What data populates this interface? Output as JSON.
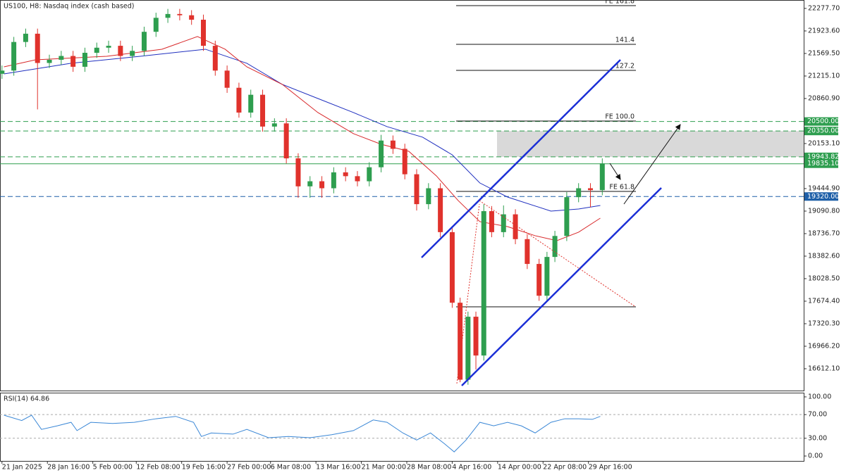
{
  "chart_data": [
    {
      "type": "candlestick",
      "title": "US100, H8:  Nasdaq index (cash based)",
      "x": [
        0,
        6,
        12,
        18,
        24,
        30,
        36,
        42,
        48,
        54,
        60,
        66,
        72,
        78,
        84,
        90,
        96,
        102,
        108,
        114,
        120,
        126,
        132,
        138,
        144,
        150,
        156,
        162,
        168,
        174,
        180,
        186,
        192,
        198,
        204,
        210,
        216,
        222,
        228,
        232,
        236,
        240,
        244,
        248,
        254,
        260,
        266,
        272,
        276,
        280,
        286,
        292,
        298,
        304
      ],
      "open": [
        21250,
        21300,
        21750,
        21880,
        21420,
        21470,
        21530,
        21360,
        21580,
        21660,
        21690,
        21530,
        21610,
        21910,
        22130,
        22190,
        22170,
        22100,
        21690,
        21300,
        21030,
        20640,
        20920,
        20420,
        20470,
        19920,
        19480,
        19560,
        19450,
        19700,
        19640,
        19560,
        19780,
        20200,
        20070,
        19670,
        19200,
        19450,
        18760,
        17650,
        16440,
        17430,
        16820,
        19090,
        18760,
        19040,
        18650,
        18260,
        17760,
        18370,
        18700,
        19310,
        19450,
        19420
      ],
      "high": [
        21380,
        21830,
        21960,
        21960,
        21550,
        21610,
        21610,
        21660,
        21740,
        21770,
        21770,
        21690,
        21990,
        22210,
        22270,
        22270,
        22250,
        22180,
        21770,
        21380,
        21110,
        21000,
        21000,
        20550,
        20550,
        20000,
        19640,
        19640,
        19780,
        19780,
        19720,
        19860,
        20290,
        20280,
        20150,
        19750,
        19530,
        19530,
        18840,
        17730,
        17510,
        17510,
        19200,
        19170,
        19180,
        19120,
        18730,
        18340,
        18450,
        18780,
        19390,
        19530,
        19530,
        19920
      ],
      "low": [
        21170,
        21220,
        21670,
        20690,
        21340,
        21390,
        21280,
        21280,
        21500,
        21580,
        21450,
        21450,
        21530,
        21830,
        22050,
        22090,
        22020,
        21610,
        21220,
        20950,
        20560,
        20560,
        20340,
        20340,
        19840,
        19300,
        19300,
        19300,
        19370,
        19560,
        19480,
        19480,
        19700,
        19990,
        19590,
        19100,
        19120,
        18680,
        17570,
        16400,
        16360,
        16600,
        16740,
        18680,
        18680,
        18570,
        18180,
        17680,
        17680,
        18290,
        18620,
        19230,
        19150,
        19340
      ],
      "close": [
        21300,
        21750,
        21880,
        21420,
        21470,
        21530,
        21360,
        21580,
        21660,
        21690,
        21530,
        21610,
        21910,
        22130,
        22190,
        22170,
        22100,
        21690,
        21300,
        21030,
        20640,
        20920,
        20420,
        20470,
        19920,
        19480,
        19560,
        19450,
        19700,
        19640,
        19560,
        19780,
        20200,
        20070,
        19670,
        19200,
        19450,
        18760,
        17650,
        16440,
        17430,
        16820,
        19090,
        18760,
        19040,
        18650,
        18260,
        17760,
        18370,
        18700,
        19310,
        19450,
        19420,
        19840
      ],
      "up_color": "#2e9e4f",
      "down_color": "#e0322c",
      "xlim": [
        -1,
        406
      ],
      "ylim": [
        16269,
        22410
      ],
      "yticks": [
        {
          "value": 22277.7,
          "label": "22277.70"
        },
        {
          "value": 21923.6,
          "label": "21923.60"
        },
        {
          "value": 21569.5,
          "label": "21569.50"
        },
        {
          "value": 21215.1,
          "label": "21215.10"
        },
        {
          "value": 20860.9,
          "label": "20860.90"
        },
        {
          "value": 20153.1,
          "label": "20153.10"
        },
        {
          "value": 19444.9,
          "label": "19444.90"
        },
        {
          "value": 19090.8,
          "label": "19090.80"
        },
        {
          "value": 18736.7,
          "label": "18736.70"
        },
        {
          "value": 18382.6,
          "label": "18382.60"
        },
        {
          "value": 18028.5,
          "label": "18028.50"
        },
        {
          "value": 17674.4,
          "label": "17674.40"
        },
        {
          "value": 17320.3,
          "label": "17320.30"
        },
        {
          "value": 16966.2,
          "label": "16966.20"
        },
        {
          "value": 16612.1,
          "label": "16612.10"
        }
      ],
      "xticks": [
        {
          "value": 0,
          "label": "21 Jan 2025"
        },
        {
          "value": 23,
          "label": "28 Jan 16:00"
        },
        {
          "value": 46,
          "label": "5 Feb 00:00"
        },
        {
          "value": 68,
          "label": "12 Feb 08:00"
        },
        {
          "value": 91,
          "label": "19 Feb 16:00"
        },
        {
          "value": 114,
          "label": "27 Feb 00:00"
        },
        {
          "value": 136,
          "label": "6 Mar 08:00"
        },
        {
          "value": 159,
          "label": "13 Mar 16:00"
        },
        {
          "value": 182,
          "label": "21 Mar 00:00"
        },
        {
          "value": 205,
          "label": "28 Mar 08:00"
        },
        {
          "value": 228,
          "label": "4 Apr 16:00"
        },
        {
          "value": 251,
          "label": "14 Apr 00:00"
        },
        {
          "value": 274,
          "label": "22 Apr 08:00"
        },
        {
          "value": 297,
          "label": "29 Apr 16:00"
        }
      ],
      "moving_averages": [
        {
          "color": "#1f2fbf",
          "x": [
            1,
            35,
            70,
            103,
            124,
            142,
            160,
            178,
            195,
            213,
            228,
            242,
            256,
            278,
            292,
            303
          ],
          "values": [
            21248,
            21415,
            21525,
            21636,
            21415,
            21082,
            20861,
            20640,
            20419,
            20253,
            19976,
            19533,
            19312,
            19091,
            19124,
            19179
          ]
        },
        {
          "color": "#d8282a",
          "x": [
            1,
            17,
            53,
            81,
            99,
            113,
            124,
            142,
            160,
            178,
            192,
            206,
            220,
            231,
            242,
            256,
            270,
            281,
            292,
            303
          ],
          "values": [
            21359,
            21470,
            21525,
            21636,
            21835,
            21636,
            21359,
            21082,
            20640,
            20308,
            20142,
            20031,
            19644,
            19257,
            18925,
            18847,
            18704,
            18626,
            18759,
            18980
          ]
        }
      ],
      "levels": [
        {
          "value": 20500,
          "label": "20500.00",
          "color": "#2e9e4f",
          "dash": true
        },
        {
          "value": 20350,
          "label": "20350.00",
          "color": "#2e9e4f",
          "dash": true
        },
        {
          "value": 19943.82,
          "label": "19943.82",
          "color": "#2e9e4f",
          "dash": true
        },
        {
          "value": 19835.1,
          "label": "19835.10",
          "color": "#2e9e4f",
          "dash": false
        },
        {
          "value": 19320,
          "label": "19320.00",
          "color": "#1e5fa8",
          "dash": true
        }
      ],
      "fib_levels": [
        {
          "value": 22322,
          "label": "FE 161.8"
        },
        {
          "value": 21713,
          "label": "141.4"
        },
        {
          "value": 21304,
          "label": "127.2"
        },
        {
          "value": 20507,
          "label": "FE 100.0"
        },
        {
          "value": 19400,
          "label": "FE 61.8"
        },
        {
          "value": 17586
        }
      ]
    },
    {
      "type": "line",
      "title": "RSI(14) 64.86",
      "color": "#3a87d6",
      "x": [
        1,
        10,
        15,
        20,
        28,
        35,
        38,
        45,
        56,
        67,
        78,
        88,
        97,
        101,
        106,
        117,
        124,
        135,
        145,
        156,
        167,
        178,
        188,
        195,
        203,
        210,
        217,
        224,
        229,
        235,
        242,
        249,
        256,
        263,
        270,
        278,
        285,
        292,
        299,
        303
      ],
      "values": [
        69,
        60,
        69,
        45,
        51,
        57,
        43,
        57,
        55,
        57,
        63,
        67,
        57,
        33,
        39,
        37,
        45,
        31,
        33,
        31,
        36,
        43,
        61,
        57,
        39,
        27,
        39,
        21,
        7,
        27,
        57,
        51,
        57,
        51,
        39,
        57,
        63,
        63,
        62,
        67
      ],
      "xlim": [
        -1,
        406
      ],
      "ylim": [
        -8.3,
        107.1
      ],
      "yticks": [
        {
          "value": 100,
          "label": "100.00"
        },
        {
          "value": 70,
          "label": "70.00"
        },
        {
          "value": 30,
          "label": "30.00"
        },
        {
          "value": 0,
          "label": "0.00"
        }
      ],
      "grid_levels": [
        70,
        30
      ]
    }
  ]
}
